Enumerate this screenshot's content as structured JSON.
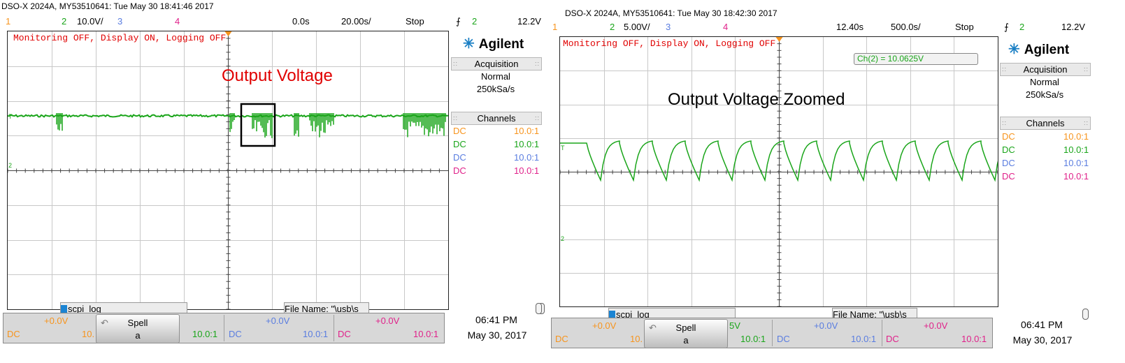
{
  "colors": {
    "ch1": "#f7941d",
    "ch2": "#1aa51a",
    "ch3": "#5a7de0",
    "ch4": "#e0218a",
    "status_text": "#e00000",
    "brand": "#1a7fc4"
  },
  "left": {
    "header": "DSO-X 2024A, MY53510641: Tue May 30 18:41:46 2017",
    "ch1_num": "1",
    "ch2_num": "2",
    "ch2_scale": "10.0V/",
    "ch3_num": "3",
    "ch4_num": "4",
    "time_offset": "0.0s",
    "time_scale": "20.00s/",
    "run_state": "Stop",
    "trigger_icon": "trigger-edge-icon",
    "trigger_symbol": "⨍",
    "trigger_channel": "2",
    "trigger_level": "12.2V",
    "status_message": "Monitoring OFF, Display ON, Logging OFF",
    "annotation": "Output Voltage",
    "brand": "Agilent",
    "acquisition_title": "Acquisition",
    "acq_mode": "Normal",
    "acq_rate": "250kSa/s",
    "channels_title": "Channels",
    "channels": [
      {
        "coupling": "DC",
        "probe": "10.0:1"
      },
      {
        "coupling": "DC",
        "probe": "10.0:1"
      },
      {
        "coupling": "DC",
        "probe": "10.0:1"
      },
      {
        "coupling": "DC",
        "probe": "10.0:1"
      }
    ],
    "scpi_tab": "scpi_log",
    "file_tab": "File Name: \"\\usb\\s",
    "bottom": {
      "ch1_offset": "+0.0V",
      "ch1_coupling": "DC",
      "ch1_probe": "10.",
      "spell_label": "Spell",
      "spell_value": "a",
      "ch2_probe": "10.0:1",
      "ch3_offset": "+0.0V",
      "ch3_coupling": "DC",
      "ch3_probe": "10.0:1",
      "ch4_offset": "+0.0V",
      "ch4_coupling": "DC",
      "ch4_probe": "10.0:1"
    },
    "clock_time": "06:41 PM",
    "clock_date": "May 30, 2017"
  },
  "right": {
    "header": "DSO-X 2024A, MY53510641: Tue May 30 18:42:30 2017",
    "ch1_num": "1",
    "ch2_num": "2",
    "ch2_scale": "5.00V/",
    "ch3_num": "3",
    "ch4_num": "4",
    "time_offset": "12.40s",
    "time_scale": "500.0s/",
    "run_state": "Stop",
    "trigger_icon": "trigger-edge-icon",
    "trigger_symbol": "⨍",
    "trigger_channel": "2",
    "trigger_level": "12.2V",
    "status_message": "Monitoring OFF, Display ON, Logging OFF",
    "measurement": "Ch(2) = 10.0625V",
    "annotation": "Output Voltage Zoomed",
    "brand": "Agilent",
    "acquisition_title": "Acquisition",
    "acq_mode": "Normal",
    "acq_rate": "250kSa/s",
    "channels_title": "Channels",
    "channels": [
      {
        "coupling": "DC",
        "probe": "10.0:1"
      },
      {
        "coupling": "DC",
        "probe": "10.0:1"
      },
      {
        "coupling": "DC",
        "probe": "10.0:1"
      },
      {
        "coupling": "DC",
        "probe": "10.0:1"
      }
    ],
    "scpi_tab": "scpi_log",
    "file_tab": "File Name: \"\\usb\\s",
    "bottom": {
      "ch1_offset": "+0.0V",
      "ch1_coupling": "DC",
      "ch1_probe": "10.",
      "spell_label": "Spell",
      "spell_value": "a",
      "ch2_fragment": "5V",
      "ch2_probe": "10.0:1",
      "ch3_offset": "+0.0V",
      "ch3_coupling": "DC",
      "ch3_probe": "10.0:1",
      "ch4_offset": "+0.0V",
      "ch4_coupling": "DC",
      "ch4_probe": "10.0:1"
    },
    "clock_time": "06:41 PM",
    "clock_date": "May 30, 2017"
  }
}
